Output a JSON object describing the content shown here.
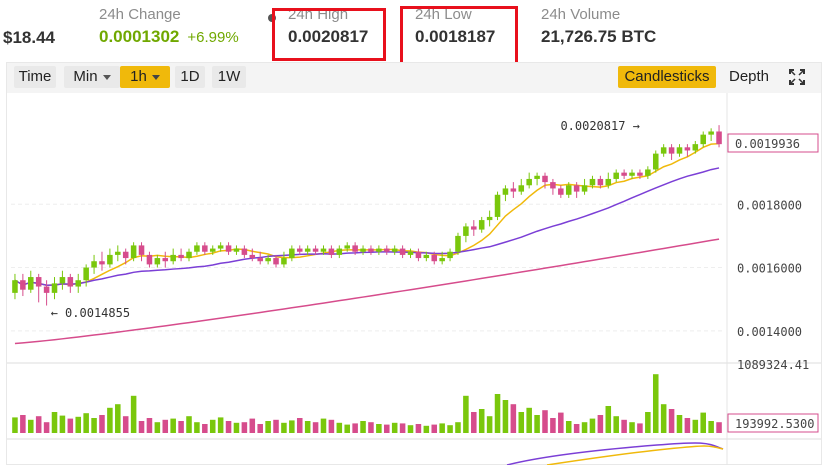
{
  "header": {
    "price": "$18.44",
    "change_label": "24h Change",
    "change_value": "0.0001302",
    "change_pct": "+6.99%",
    "high_label": "24h High",
    "high_value": "0.0020817",
    "low_label": "24h Low",
    "low_value": "0.0018187",
    "volume_label": "24h Volume",
    "volume_value": "21,726.75 BTC"
  },
  "toolbar": {
    "time": "Time",
    "min": "Min",
    "interval": "1h",
    "day": "1D",
    "week": "1W",
    "candlesticks": "Candlesticks",
    "depth": "Depth",
    "fullscreen_icon": "fullscreen-icon"
  },
  "colors": {
    "up": "#7ac70c",
    "down": "#d64c8c",
    "ma_short": "#f0b90b",
    "ma_mid": "#7b3fd6",
    "ma_long": "#d64c8c",
    "highlight": "#e8101c",
    "accent": "#f0b90b"
  },
  "chart_data": {
    "type": "candlestick",
    "price_axis_ticks": [
      "0.0014000",
      "0.0016000",
      "0.0018000"
    ],
    "current_price_label": "0.0019936",
    "max_annotation": "0.0020817",
    "min_annotation": "0.0014855",
    "volume_axis_ticks": [
      "1089324.41"
    ],
    "current_volume_label": "193992.5300",
    "candles": [
      [
        0.00152,
        0.00156,
        0.0015,
        0.00158
      ],
      [
        0.00156,
        0.00153,
        0.00151,
        0.00158
      ],
      [
        0.00153,
        0.00157,
        0.00152,
        0.00159
      ],
      [
        0.00157,
        0.00154,
        0.00149,
        0.00158
      ],
      [
        0.00154,
        0.00152,
        0.00148,
        0.00156
      ],
      [
        0.00152,
        0.00155,
        0.0015,
        0.00157
      ],
      [
        0.00155,
        0.00157,
        0.00153,
        0.00159
      ],
      [
        0.00157,
        0.00154,
        0.00152,
        0.00158
      ],
      [
        0.00154,
        0.00156,
        0.00152,
        0.00158
      ],
      [
        0.00156,
        0.0016,
        0.00154,
        0.00161
      ],
      [
        0.0016,
        0.00162,
        0.00158,
        0.00164
      ],
      [
        0.00162,
        0.00161,
        0.00159,
        0.00165
      ],
      [
        0.00161,
        0.00164,
        0.0016,
        0.00166
      ],
      [
        0.00164,
        0.00165,
        0.00162,
        0.00167
      ],
      [
        0.00165,
        0.00163,
        0.00161,
        0.00166
      ],
      [
        0.00163,
        0.00167,
        0.00162,
        0.00168
      ],
      [
        0.00167,
        0.00164,
        0.00162,
        0.00168
      ],
      [
        0.00164,
        0.00161,
        0.0016,
        0.00165
      ],
      [
        0.00161,
        0.00163,
        0.0016,
        0.00164
      ],
      [
        0.00163,
        0.00162,
        0.0016,
        0.00165
      ],
      [
        0.00162,
        0.00164,
        0.00161,
        0.00166
      ],
      [
        0.00164,
        0.00163,
        0.00162,
        0.00166
      ],
      [
        0.00163,
        0.00165,
        0.00162,
        0.00166
      ],
      [
        0.00165,
        0.00167,
        0.00164,
        0.00168
      ],
      [
        0.00167,
        0.00165,
        0.00164,
        0.00168
      ],
      [
        0.00165,
        0.00166,
        0.00164,
        0.00167
      ],
      [
        0.00166,
        0.00167,
        0.00165,
        0.00168
      ],
      [
        0.00167,
        0.00165,
        0.00164,
        0.00168
      ],
      [
        0.00165,
        0.00166,
        0.00164,
        0.00167
      ],
      [
        0.00166,
        0.00164,
        0.00163,
        0.00167
      ],
      [
        0.00164,
        0.00163,
        0.00162,
        0.00166
      ],
      [
        0.00163,
        0.00162,
        0.00161,
        0.00165
      ],
      [
        0.00162,
        0.00163,
        0.00161,
        0.00164
      ],
      [
        0.00163,
        0.00161,
        0.0016,
        0.00164
      ],
      [
        0.00161,
        0.00163,
        0.0016,
        0.00165
      ],
      [
        0.00163,
        0.00166,
        0.00162,
        0.00167
      ],
      [
        0.00166,
        0.00165,
        0.00164,
        0.00167
      ],
      [
        0.00165,
        0.00166,
        0.00164,
        0.00167
      ],
      [
        0.00166,
        0.00165,
        0.00164,
        0.00167
      ],
      [
        0.00165,
        0.00166,
        0.00164,
        0.00167
      ],
      [
        0.00166,
        0.00164,
        0.00163,
        0.00167
      ],
      [
        0.00164,
        0.00166,
        0.00163,
        0.00167
      ],
      [
        0.00166,
        0.00167,
        0.00165,
        0.00168
      ],
      [
        0.00167,
        0.00165,
        0.00164,
        0.00168
      ],
      [
        0.00165,
        0.00166,
        0.00164,
        0.00167
      ],
      [
        0.00166,
        0.00165,
        0.00164,
        0.00167
      ],
      [
        0.00165,
        0.00166,
        0.00164,
        0.00167
      ],
      [
        0.00166,
        0.00165,
        0.00164,
        0.00167
      ],
      [
        0.00165,
        0.00166,
        0.00164,
        0.00167
      ],
      [
        0.00166,
        0.00164,
        0.00163,
        0.00167
      ],
      [
        0.00164,
        0.00165,
        0.00163,
        0.00166
      ],
      [
        0.00165,
        0.00163,
        0.00162,
        0.00166
      ],
      [
        0.00163,
        0.00164,
        0.00162,
        0.00165
      ],
      [
        0.00164,
        0.00162,
        0.00161,
        0.00165
      ],
      [
        0.00162,
        0.00163,
        0.00161,
        0.00165
      ],
      [
        0.00163,
        0.00165,
        0.00162,
        0.00166
      ],
      [
        0.00165,
        0.0017,
        0.00164,
        0.00171
      ],
      [
        0.0017,
        0.00173,
        0.00168,
        0.00174
      ],
      [
        0.00173,
        0.00172,
        0.0017,
        0.00175
      ],
      [
        0.00172,
        0.00175,
        0.00171,
        0.00176
      ],
      [
        0.00175,
        0.00176,
        0.00173,
        0.00178
      ],
      [
        0.00176,
        0.00183,
        0.00175,
        0.00184
      ],
      [
        0.00183,
        0.00185,
        0.00181,
        0.00186
      ],
      [
        0.00185,
        0.00184,
        0.00182,
        0.00187
      ],
      [
        0.00184,
        0.00186,
        0.00183,
        0.00188
      ],
      [
        0.00186,
        0.00188,
        0.00185,
        0.0019
      ],
      [
        0.00188,
        0.00189,
        0.00186,
        0.0019
      ],
      [
        0.00189,
        0.00187,
        0.00185,
        0.0019
      ],
      [
        0.00187,
        0.00185,
        0.00183,
        0.00188
      ],
      [
        0.00185,
        0.00183,
        0.00182,
        0.00186
      ],
      [
        0.00183,
        0.00186,
        0.00182,
        0.00187
      ],
      [
        0.00186,
        0.00184,
        0.00182,
        0.00187
      ],
      [
        0.00184,
        0.00186,
        0.00183,
        0.00188
      ],
      [
        0.00186,
        0.00188,
        0.00185,
        0.00189
      ],
      [
        0.00188,
        0.00186,
        0.00185,
        0.00189
      ],
      [
        0.00186,
        0.00188,
        0.00185,
        0.0019
      ],
      [
        0.00188,
        0.0019,
        0.00187,
        0.00191
      ],
      [
        0.0019,
        0.00189,
        0.00188,
        0.00191
      ],
      [
        0.00189,
        0.0019,
        0.00188,
        0.00191
      ],
      [
        0.0019,
        0.00189,
        0.00188,
        0.00191
      ],
      [
        0.00189,
        0.00191,
        0.00188,
        0.00192
      ],
      [
        0.00191,
        0.00196,
        0.0019,
        0.00197
      ],
      [
        0.00196,
        0.00198,
        0.00195,
        0.00199
      ],
      [
        0.00198,
        0.00196,
        0.00194,
        0.00199
      ],
      [
        0.00196,
        0.00198,
        0.00195,
        0.00199
      ],
      [
        0.00198,
        0.00197,
        0.00195,
        0.00199
      ],
      [
        0.00197,
        0.00199,
        0.00196,
        0.002
      ],
      [
        0.00199,
        0.00202,
        0.00198,
        0.00203
      ],
      [
        0.00202,
        0.00203,
        0.002,
        0.00204
      ],
      [
        0.00203,
        0.00199,
        0.00198,
        0.00205
      ]
    ],
    "volumes": [
      0.26,
      0.3,
      0.22,
      0.28,
      0.18,
      0.35,
      0.29,
      0.24,
      0.27,
      0.33,
      0.25,
      0.3,
      0.42,
      0.48,
      0.28,
      0.62,
      0.2,
      0.25,
      0.18,
      0.22,
      0.24,
      0.2,
      0.28,
      0.18,
      0.15,
      0.22,
      0.26,
      0.2,
      0.17,
      0.18,
      0.24,
      0.15,
      0.2,
      0.22,
      0.17,
      0.21,
      0.25,
      0.2,
      0.18,
      0.24,
      0.22,
      0.17,
      0.14,
      0.16,
      0.2,
      0.18,
      0.15,
      0.14,
      0.17,
      0.16,
      0.13,
      0.15,
      0.12,
      0.14,
      0.16,
      0.13,
      0.18,
      0.62,
      0.35,
      0.4,
      0.28,
      0.65,
      0.55,
      0.48,
      0.35,
      0.42,
      0.3,
      0.38,
      0.25,
      0.34,
      0.2,
      0.15,
      0.18,
      0.24,
      0.3,
      0.45,
      0.28,
      0.22,
      0.18,
      0.16,
      0.35,
      0.98,
      0.48,
      0.4,
      0.3,
      0.25,
      0.22,
      0.34,
      0.2,
      0.18
    ],
    "volume_max": 1.0
  }
}
